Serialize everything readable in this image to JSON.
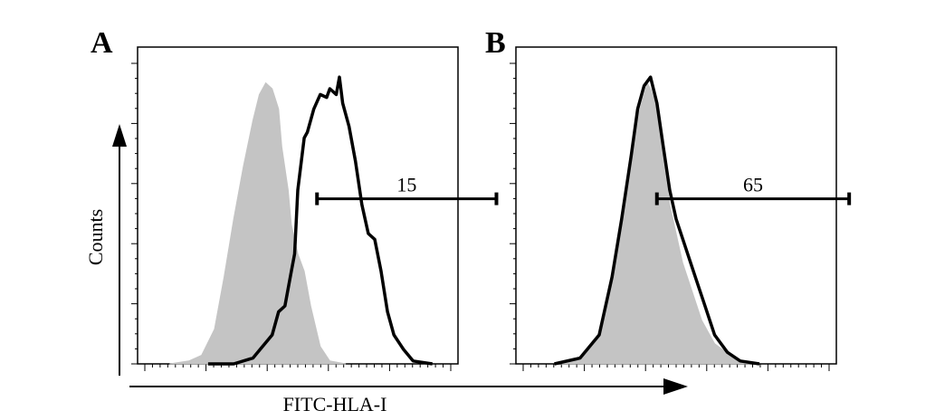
{
  "figure": {
    "y_axis_label": "Counts",
    "x_axis_label": "FITC-HLA-I",
    "colors": {
      "control_fill": "#c4c4c4",
      "sample_line": "#000000",
      "background": "#ffffff"
    }
  },
  "chart_data": [
    {
      "type": "area",
      "panel": "A",
      "xlim": [
        0,
        1
      ],
      "ylim": [
        0,
        1
      ],
      "series": [
        {
          "role": "control",
          "style": "filled-gray",
          "x": [
            0.1,
            0.16,
            0.2,
            0.24,
            0.27,
            0.3,
            0.33,
            0.36,
            0.38,
            0.4,
            0.42,
            0.44,
            0.45,
            0.47,
            0.48,
            0.5,
            0.52,
            0.54,
            0.57,
            0.6,
            0.65
          ],
          "y": [
            0,
            0.01,
            0.03,
            0.12,
            0.3,
            0.5,
            0.68,
            0.84,
            0.93,
            0.97,
            0.95,
            0.88,
            0.75,
            0.6,
            0.48,
            0.38,
            0.32,
            0.2,
            0.06,
            0.01,
            0
          ]
        },
        {
          "role": "sample",
          "style": "black-line",
          "x": [
            0.22,
            0.3,
            0.36,
            0.42,
            0.44,
            0.46,
            0.48,
            0.49,
            0.5,
            0.52,
            0.53,
            0.55,
            0.57,
            0.59,
            0.6,
            0.62,
            0.63,
            0.64,
            0.66,
            0.68,
            0.7,
            0.72,
            0.74,
            0.76,
            0.78,
            0.8,
            0.83,
            0.86,
            0.92
          ],
          "y": [
            0,
            0,
            0.02,
            0.1,
            0.18,
            0.2,
            0.32,
            0.38,
            0.6,
            0.78,
            0.8,
            0.88,
            0.93,
            0.92,
            0.95,
            0.93,
            0.99,
            0.9,
            0.82,
            0.7,
            0.55,
            0.45,
            0.43,
            0.32,
            0.18,
            0.1,
            0.05,
            0.01,
            0
          ]
        }
      ],
      "gate": {
        "label": "15",
        "x_start": 0.56,
        "x_end": 1.12,
        "y": 0.57
      }
    },
    {
      "type": "area",
      "panel": "B",
      "xlim": [
        0,
        1
      ],
      "ylim": [
        0,
        1
      ],
      "series": [
        {
          "role": "control",
          "style": "filled-gray",
          "x": [
            0.14,
            0.2,
            0.26,
            0.3,
            0.33,
            0.36,
            0.38,
            0.4,
            0.41,
            0.42,
            0.44,
            0.46,
            0.48,
            0.5,
            0.52,
            0.55,
            0.58,
            0.62,
            0.68,
            0.74
          ],
          "y": [
            0,
            0.02,
            0.1,
            0.3,
            0.5,
            0.72,
            0.85,
            0.93,
            0.97,
            0.95,
            0.88,
            0.7,
            0.55,
            0.45,
            0.35,
            0.25,
            0.15,
            0.07,
            0.02,
            0
          ]
        },
        {
          "role": "sample",
          "style": "black-line",
          "x": [
            0.12,
            0.2,
            0.26,
            0.3,
            0.33,
            0.36,
            0.38,
            0.4,
            0.42,
            0.44,
            0.46,
            0.48,
            0.5,
            0.53,
            0.56,
            0.59,
            0.62,
            0.66,
            0.7,
            0.76
          ],
          "y": [
            0,
            0.02,
            0.1,
            0.3,
            0.5,
            0.72,
            0.88,
            0.96,
            0.99,
            0.9,
            0.75,
            0.6,
            0.5,
            0.4,
            0.3,
            0.2,
            0.1,
            0.04,
            0.01,
            0
          ]
        }
      ],
      "gate": {
        "label": "65",
        "x_start": 0.44,
        "x_end": 1.04,
        "y": 0.57
      }
    }
  ]
}
